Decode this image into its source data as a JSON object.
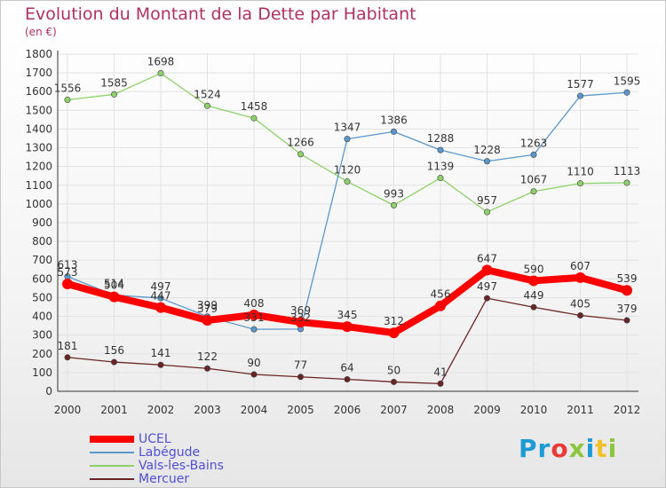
{
  "chart_data": {
    "type": "line",
    "title": "Evolution du Montant de la Dette par Habitant",
    "subtitle": "(en €)",
    "x": [
      "2000",
      "2001",
      "2002",
      "2003",
      "2004",
      "2005",
      "2006",
      "2007",
      "2008",
      "2009",
      "2010",
      "2011",
      "2012"
    ],
    "ylim": [
      0,
      1800
    ],
    "yticks": [
      0,
      100,
      200,
      300,
      400,
      500,
      600,
      700,
      800,
      900,
      1000,
      1100,
      1200,
      1300,
      1400,
      1500,
      1600,
      1700,
      1800
    ],
    "grid": true,
    "legend_position": "bottom-left",
    "series": [
      {
        "name": "Mercuer",
        "color": "#6b2424",
        "values": [
          181,
          156,
          141,
          122,
          90,
          77,
          64,
          50,
          41,
          497,
          449,
          405,
          379
        ]
      },
      {
        "name": "Vals-les-Bains",
        "color": "#8ed16a",
        "values": [
          1556,
          1585,
          1698,
          1524,
          1458,
          1266,
          1120,
          993,
          1139,
          957,
          1067,
          1110,
          1113
        ]
      },
      {
        "name": "Labégude",
        "color": "#5b97cc",
        "values": [
          613,
          514,
          497,
          399,
          331,
          332,
          1347,
          1386,
          1288,
          1228,
          1263,
          1577,
          1595
        ]
      },
      {
        "name": "UCEL",
        "color": "#ff0000",
        "values": [
          573,
          504,
          447,
          379,
          408,
          369,
          345,
          312,
          456,
          647,
          590,
          607,
          539
        ]
      }
    ]
  },
  "legend": [
    {
      "label": "UCEL",
      "color": "#ff0000"
    },
    {
      "label": "Labégude",
      "color": "#5b97cc"
    },
    {
      "label": "Vals-les-Bains",
      "color": "#8ed16a"
    },
    {
      "label": "Mercuer",
      "color": "#6b2424"
    }
  ],
  "brand": {
    "p1": "Pr",
    "p2": "o",
    "p3": "x",
    "p4": "i",
    "p5": "t",
    "p6": "i",
    "full": "Proxiti"
  }
}
